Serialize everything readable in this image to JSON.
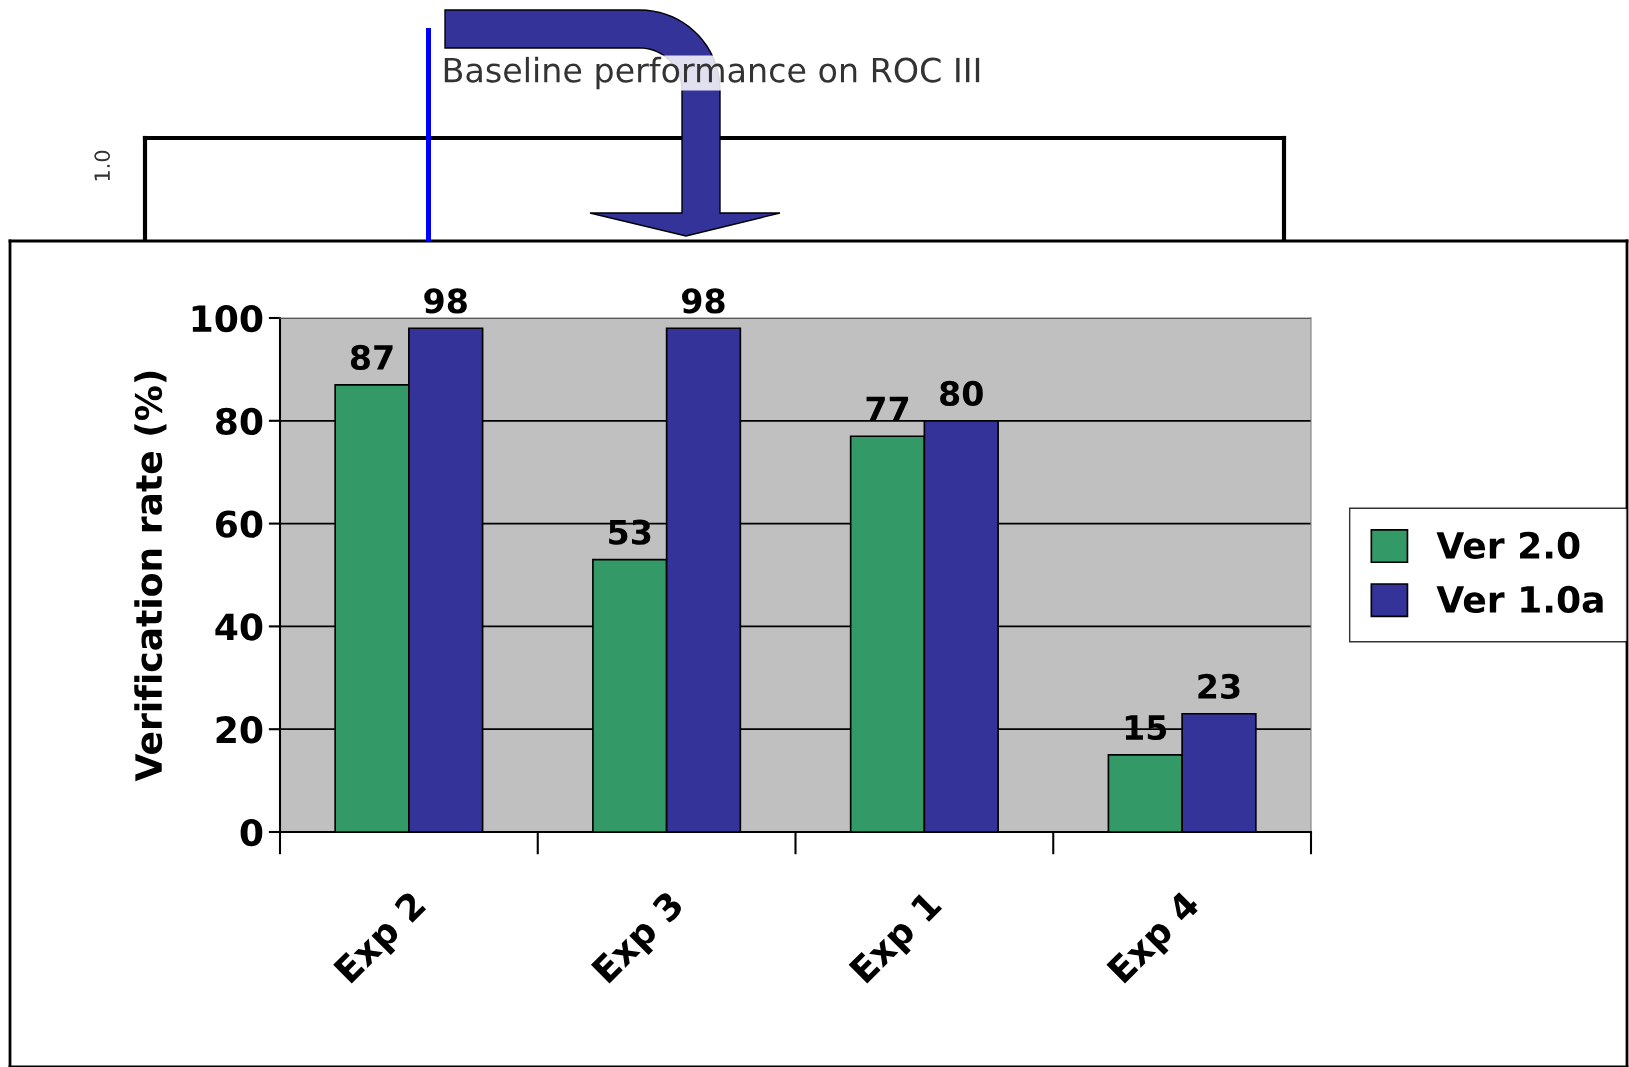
{
  "chart_data": [
    {
      "type": "other",
      "title": "Baseline performance on ROC III",
      "annotations": [
        "1.0"
      ]
    },
    {
      "type": "bar",
      "categories": [
        "Exp 2",
        "Exp 3",
        "Exp 1",
        "Exp 4"
      ],
      "series": [
        {
          "name": "Ver 2.0",
          "color": "#339966",
          "values": [
            87,
            53,
            77,
            15
          ]
        },
        {
          "name": "Ver 1.0a",
          "color": "#333399",
          "values": [
            98,
            98,
            80,
            23
          ]
        }
      ],
      "ylabel": "Verification rate (%)",
      "ylim": [
        0,
        100
      ],
      "yticks": [
        0,
        20,
        40,
        60,
        80,
        100
      ],
      "grid": "y",
      "legend": "right",
      "data_labels": true
    }
  ]
}
